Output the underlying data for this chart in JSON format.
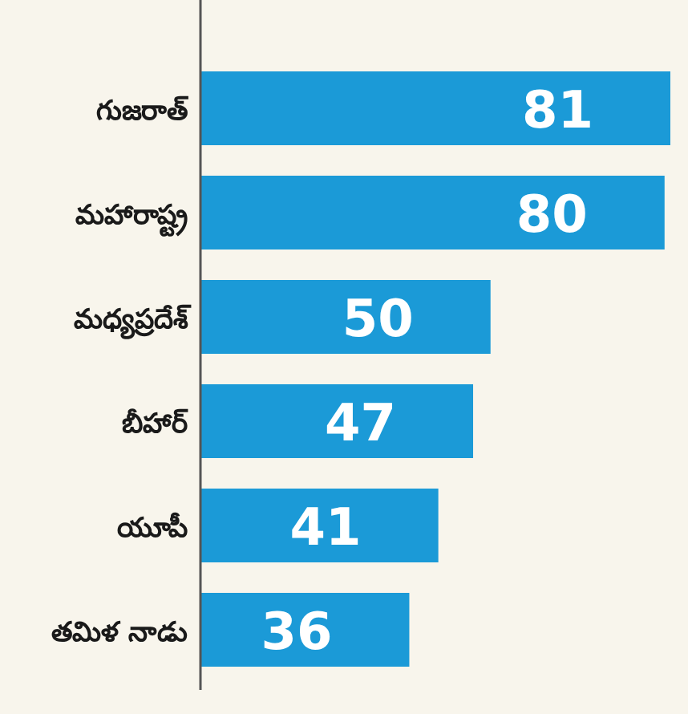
{
  "chart_data": {
    "type": "bar",
    "orientation": "horizontal",
    "categories": [
      "గుజరాత్",
      "మహారాష్ట్ర",
      "మధ్యప్రదేశ్",
      "బీహార్",
      "యూపీ",
      "తమిళ నాడు"
    ],
    "values": [
      81,
      80,
      50,
      47,
      41,
      36
    ],
    "color": "#1b9ad7",
    "data_labels": true
  }
}
